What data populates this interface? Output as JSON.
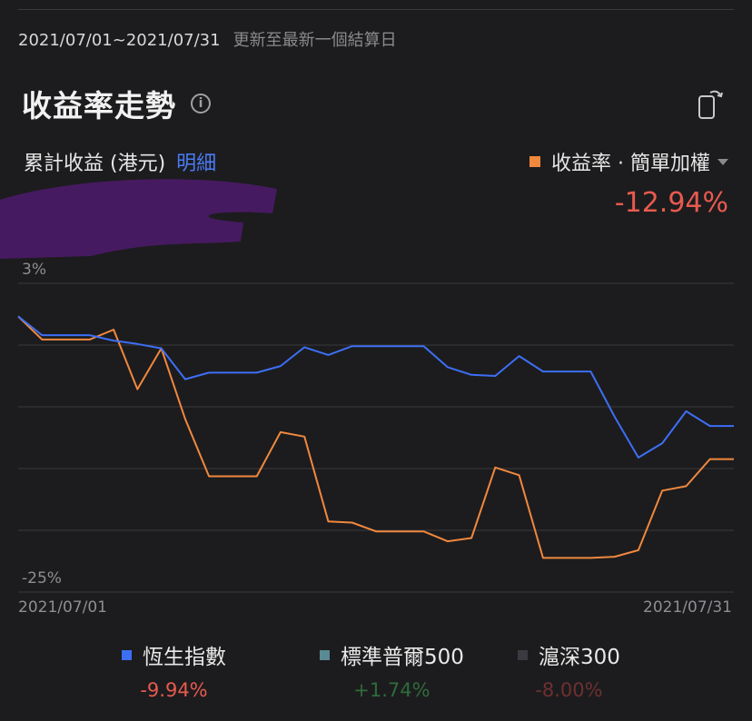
{
  "header": {
    "date_range": "2021/07/01~2021/07/31",
    "update_note": "更新至最新一個結算日",
    "title": "收益率走勢",
    "info_icon": "info-icon",
    "rotate_icon": "rotate-screen-icon"
  },
  "cumulative": {
    "label": "累計收益 (港元)",
    "detail_link": "明細"
  },
  "mode": {
    "label": "收益率 · 簡單加權",
    "color": "#f0883e",
    "value": "-12.94%",
    "value_color": "#e85a4f"
  },
  "chart_data": {
    "type": "line",
    "ylim": [
      -25,
      3
    ],
    "y_tick_labels": [
      "3%",
      "-25%"
    ],
    "x_tick_labels": [
      "2021/07/01",
      "2021/07/31"
    ],
    "grid": true,
    "series": [
      {
        "name": "收益率 · 簡單加權",
        "color": "#f0883e",
        "values": [
          0.0,
          -2.1,
          -2.1,
          -2.1,
          -1.2,
          -6.6,
          -2.9,
          -9.3,
          -14.5,
          -14.5,
          -14.5,
          -10.5,
          -10.9,
          -18.6,
          -18.7,
          -19.5,
          -19.5,
          -19.5,
          -20.4,
          -20.1,
          -13.7,
          -14.4,
          -21.9,
          -21.9,
          -21.9,
          -21.8,
          -21.2,
          -15.8,
          -15.4,
          -12.94,
          -12.94
        ]
      },
      {
        "name": "恆生指數",
        "color": "#3d6ff5",
        "values": [
          0.0,
          -1.7,
          -1.7,
          -1.7,
          -2.2,
          -2.5,
          -2.9,
          -5.7,
          -5.1,
          -5.1,
          -5.1,
          -4.5,
          -2.8,
          -3.5,
          -2.7,
          -2.7,
          -2.7,
          -2.7,
          -4.6,
          -5.3,
          -5.4,
          -3.6,
          -5.0,
          -5.0,
          -5.0,
          -9.1,
          -12.8,
          -11.5,
          -8.6,
          -9.94,
          -9.94
        ]
      }
    ]
  },
  "legend": [
    {
      "name": "恆生指數",
      "value": "-9.94%",
      "color": "#3d6ff5",
      "value_color": "#e85a4f"
    },
    {
      "name": "標準普爾500",
      "value": "+1.74%",
      "color": "#5a8a94",
      "value_color": "#2e6b3c"
    },
    {
      "name": "滬深300",
      "value": "-8.00%",
      "color": "#3a3a40",
      "value_color": "#6e3030"
    }
  ]
}
